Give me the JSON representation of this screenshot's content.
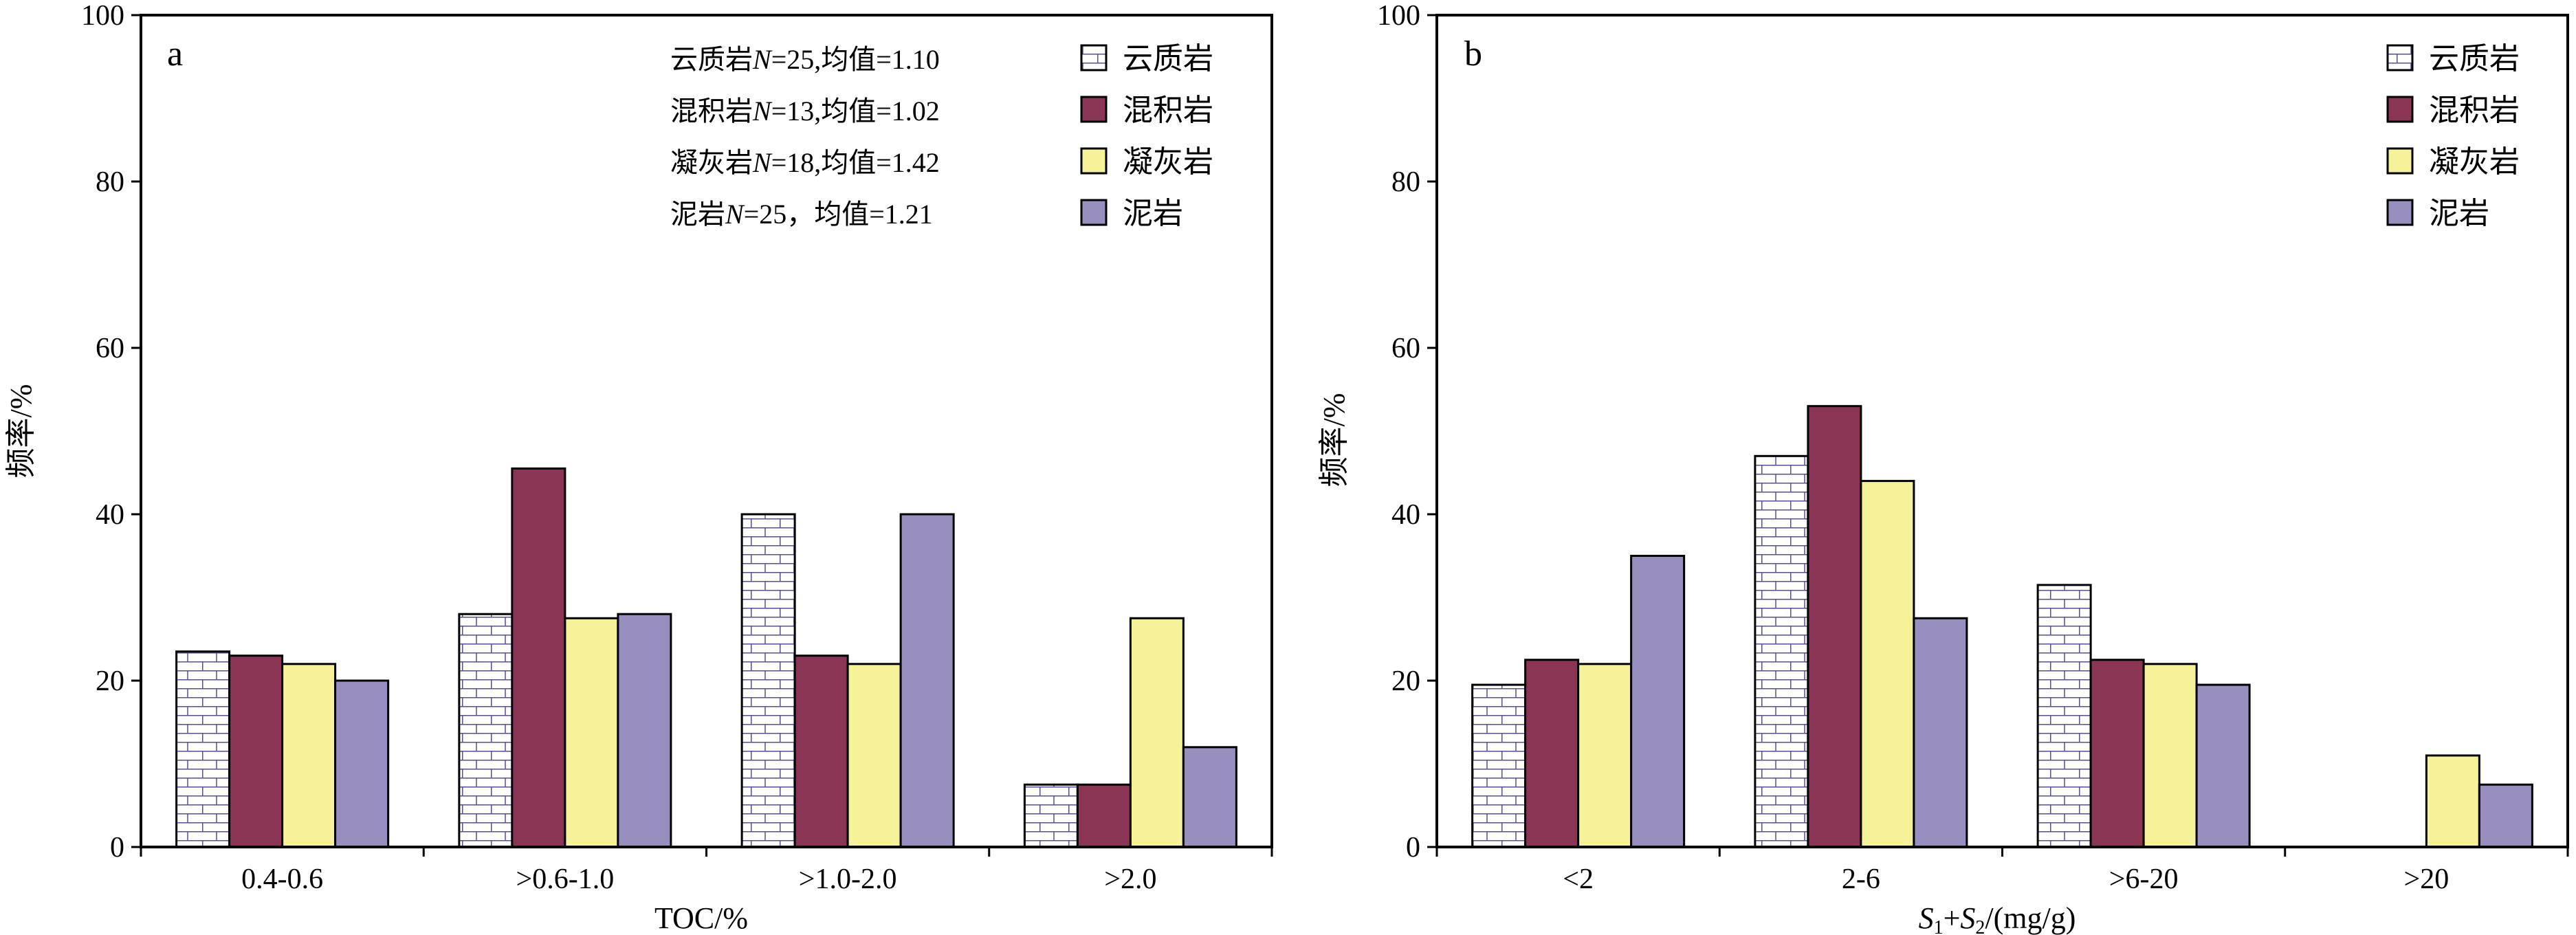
{
  "colors": {
    "dolomite_fill": "#ffffff",
    "dolomite_pattern": "#5a4f8e",
    "mixed": "#8b3556",
    "tuff": "#f6f29a",
    "mudstone": "#988fbf"
  },
  "legend": [
    "云质岩",
    "混积岩",
    "凝灰岩",
    "泥岩"
  ],
  "chart_data": [
    {
      "type": "bar",
      "panel_label": "a",
      "categories": [
        "0.4-0.6",
        ">0.6-1.0",
        ">1.0-2.0",
        ">2.0"
      ],
      "series": [
        {
          "name": "云质岩",
          "values": [
            23.5,
            28,
            40,
            7.5
          ]
        },
        {
          "name": "混积岩",
          "values": [
            23,
            45.5,
            23,
            7.5
          ]
        },
        {
          "name": "凝灰岩",
          "values": [
            22,
            27.5,
            22,
            27.5
          ]
        },
        {
          "name": "泥岩",
          "values": [
            20,
            28,
            40,
            12
          ]
        }
      ],
      "xlabel": "TOC/%",
      "ylabel": "频率/%",
      "ylim": [
        0,
        100
      ],
      "yticks": [
        0,
        20,
        40,
        60,
        80,
        100
      ],
      "notes": [
        {
          "pre": "云质岩",
          "n": "N",
          "post": "=25,均值=1.10"
        },
        {
          "pre": "混积岩",
          "n": "N",
          "post": "=13,均值=1.02"
        },
        {
          "pre": "凝灰岩",
          "n": "N",
          "post": "=18,均值=1.42"
        },
        {
          "pre": "泥岩",
          "n": "N",
          "post": "=25，均值=1.21"
        }
      ]
    },
    {
      "type": "bar",
      "panel_label": "b",
      "categories": [
        "<2",
        "2-6",
        ">6-20",
        ">20"
      ],
      "series": [
        {
          "name": "云质岩",
          "values": [
            19.5,
            47,
            31.5,
            0
          ]
        },
        {
          "name": "混积岩",
          "values": [
            22.5,
            53,
            22.5,
            0
          ]
        },
        {
          "name": "凝灰岩",
          "values": [
            22,
            44,
            22,
            11
          ]
        },
        {
          "name": "泥岩",
          "values": [
            35,
            27.5,
            19.5,
            7.5
          ]
        }
      ],
      "xlabel_parts": {
        "s1": "S",
        "sub1": "1",
        "plus": "+",
        "s2": "S",
        "sub2": "2",
        "unit": "/(mg/g)"
      },
      "ylabel": "频率/%",
      "ylim": [
        0,
        100
      ],
      "yticks": [
        0,
        20,
        40,
        60,
        80,
        100
      ]
    }
  ]
}
